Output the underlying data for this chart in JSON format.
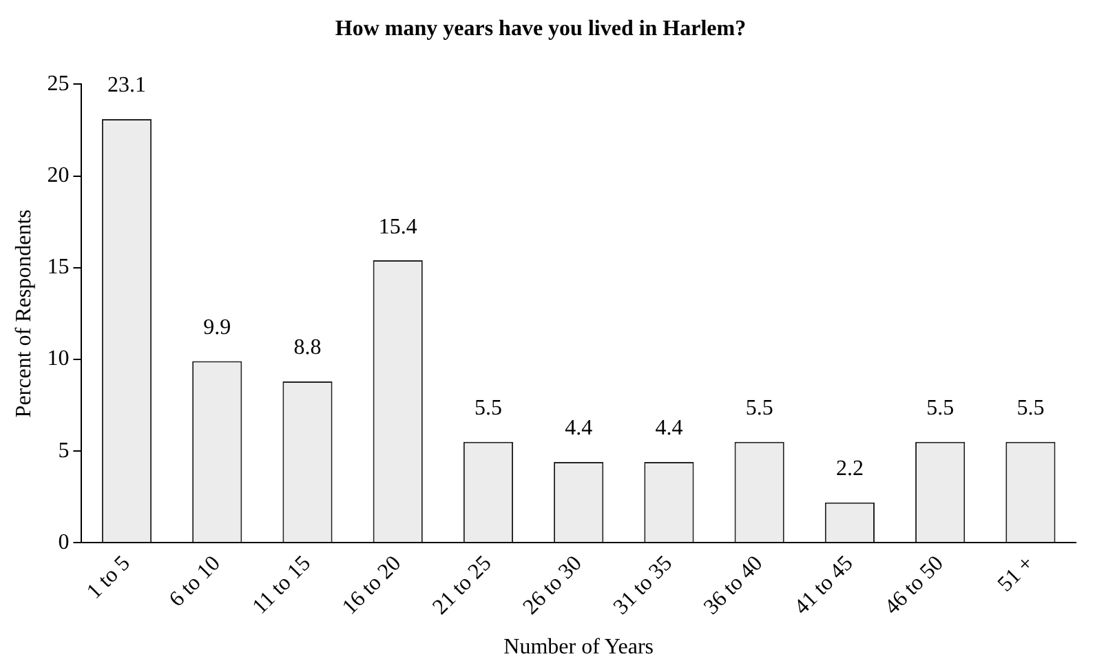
{
  "chart_data": {
    "type": "bar",
    "title": "How many years have you lived in Harlem?",
    "xlabel": "Number of Years",
    "ylabel": "Percent of Respondents",
    "categories": [
      "1 to 5",
      "6 to 10",
      "11 to 15",
      "16 to 20",
      "21 to 25",
      "26 to 30",
      "31 to 35",
      "36 to 40",
      "41 to 45",
      "46 to 50",
      "51 +"
    ],
    "values": [
      23.1,
      9.9,
      8.8,
      15.4,
      5.5,
      4.4,
      4.4,
      5.5,
      2.2,
      5.5,
      5.5
    ],
    "color": "#ececec",
    "ylim": [
      0,
      25
    ],
    "yticks": [
      0,
      5,
      10,
      15,
      20,
      25
    ],
    "grid": false,
    "legend": false,
    "data_labels": true
  }
}
